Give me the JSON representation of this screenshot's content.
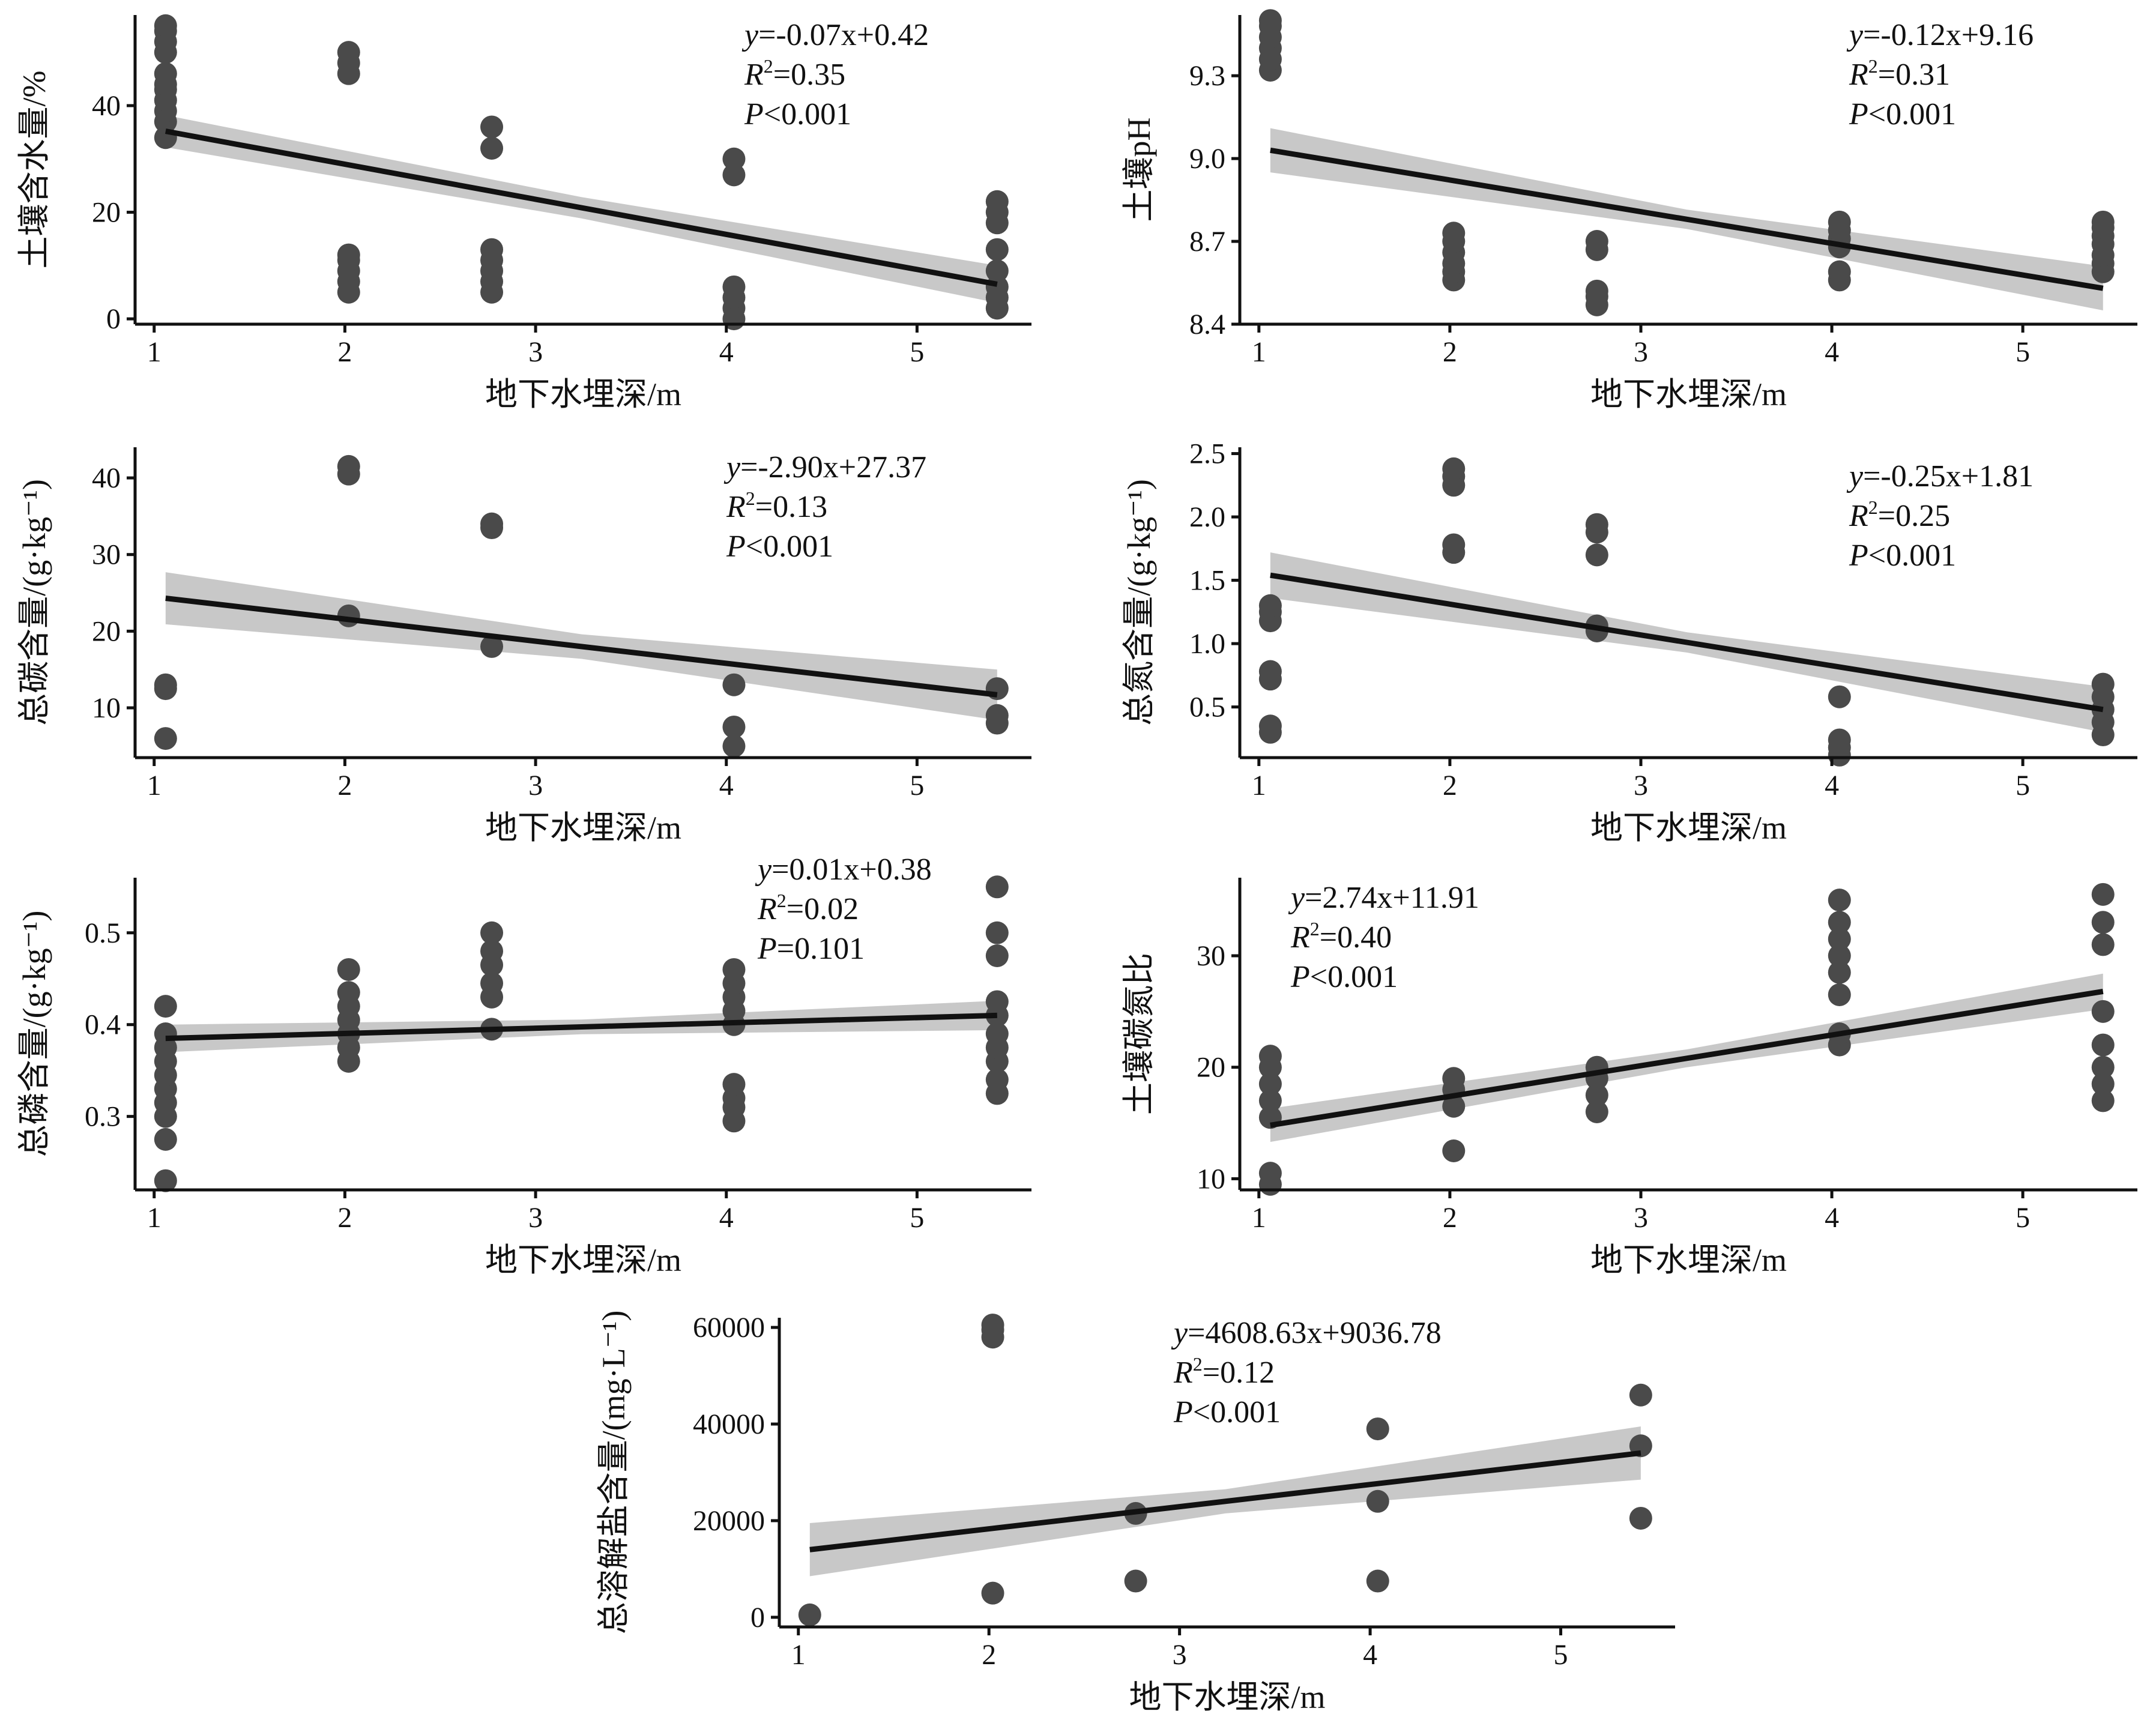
{
  "colors": {
    "point": "#4a4a4a",
    "line": "#111111",
    "band": "#c8c8c8",
    "axis": "#111111"
  },
  "chart_data": [
    {
      "type": "scatter",
      "xlabel": "地下水埋深/m",
      "ylabel": "土壤含水量/%",
      "xlim": [
        0.9,
        5.6
      ],
      "ylim": [
        -1,
        57
      ],
      "xticks": [
        1,
        2,
        3,
        4,
        5
      ],
      "yticks": [
        0,
        20,
        40
      ],
      "equation": {
        "lhs": "y",
        "rhs": "=-0.07x+0.42",
        "r2": "=0.35",
        "p_rel": "<0.001"
      },
      "fit": {
        "x": [
          1.06,
          5.42
        ],
        "y": [
          35.2,
          6.5
        ],
        "band": [
          3.0,
          2.0,
          3.5
        ]
      },
      "points": [
        [
          1.06,
          34
        ],
        [
          1.06,
          37
        ],
        [
          1.06,
          39
        ],
        [
          1.06,
          41
        ],
        [
          1.06,
          43
        ],
        [
          1.06,
          44
        ],
        [
          1.06,
          46
        ],
        [
          1.06,
          50
        ],
        [
          1.06,
          52
        ],
        [
          1.06,
          54
        ],
        [
          1.06,
          55
        ],
        [
          2.02,
          5
        ],
        [
          2.02,
          7
        ],
        [
          2.02,
          9
        ],
        [
          2.02,
          11
        ],
        [
          2.02,
          12
        ],
        [
          2.02,
          46
        ],
        [
          2.02,
          48
        ],
        [
          2.02,
          50
        ],
        [
          2.77,
          5
        ],
        [
          2.77,
          7
        ],
        [
          2.77,
          9
        ],
        [
          2.77,
          11
        ],
        [
          2.77,
          13
        ],
        [
          2.77,
          32
        ],
        [
          2.77,
          36
        ],
        [
          4.04,
          0
        ],
        [
          4.04,
          2
        ],
        [
          4.04,
          4
        ],
        [
          4.04,
          6
        ],
        [
          4.04,
          27
        ],
        [
          4.04,
          30
        ],
        [
          5.42,
          2
        ],
        [
          5.42,
          4
        ],
        [
          5.42,
          6
        ],
        [
          5.42,
          9
        ],
        [
          5.42,
          13
        ],
        [
          5.42,
          18
        ],
        [
          5.42,
          20
        ],
        [
          5.42,
          22
        ]
      ]
    },
    {
      "type": "scatter",
      "xlabel": "地下水埋深/m",
      "ylabel": "土壤pH",
      "xlim": [
        0.9,
        5.6
      ],
      "ylim": [
        8.4,
        9.52
      ],
      "xticks": [
        1,
        2,
        3,
        4,
        5
      ],
      "yticks": [
        8.4,
        8.7,
        9.0,
        9.3
      ],
      "ytick_labels": [
        "8.4",
        "8.7",
        "9.0",
        "9.3"
      ],
      "equation": {
        "lhs": "y",
        "rhs": "=-0.12x+9.16",
        "r2": "=0.31",
        "p_rel": "<0.001"
      },
      "fit": {
        "x": [
          1.06,
          5.42
        ],
        "y": [
          9.03,
          8.53
        ],
        "band": [
          0.08,
          0.035,
          0.08
        ]
      },
      "points": [
        [
          1.06,
          9.32
        ],
        [
          1.06,
          9.36
        ],
        [
          1.06,
          9.4
        ],
        [
          1.06,
          9.44
        ],
        [
          1.06,
          9.48
        ],
        [
          1.06,
          9.5
        ],
        [
          2.02,
          8.56
        ],
        [
          2.02,
          8.59
        ],
        [
          2.02,
          8.62
        ],
        [
          2.02,
          8.66
        ],
        [
          2.02,
          8.7
        ],
        [
          2.02,
          8.73
        ],
        [
          2.77,
          8.47
        ],
        [
          2.77,
          8.5
        ],
        [
          2.77,
          8.52
        ],
        [
          2.77,
          8.67
        ],
        [
          2.77,
          8.7
        ],
        [
          4.04,
          8.56
        ],
        [
          4.04,
          8.59
        ],
        [
          4.04,
          8.68
        ],
        [
          4.04,
          8.71
        ],
        [
          4.04,
          8.74
        ],
        [
          4.04,
          8.77
        ],
        [
          5.42,
          8.59
        ],
        [
          5.42,
          8.62
        ],
        [
          5.42,
          8.65
        ],
        [
          5.42,
          8.69
        ],
        [
          5.42,
          8.72
        ],
        [
          5.42,
          8.75
        ],
        [
          5.42,
          8.77
        ]
      ]
    },
    {
      "type": "scatter",
      "xlabel": "地下水埋深/m",
      "ylabel": "总碳含量/(g·kg⁻¹)",
      "xlim": [
        0.9,
        5.6
      ],
      "ylim": [
        3.5,
        44
      ],
      "xticks": [
        1,
        2,
        3,
        4,
        5
      ],
      "yticks": [
        10,
        20,
        30,
        40
      ],
      "equation": {
        "lhs": "y",
        "rhs": "=-2.90x+27.37",
        "r2": "=0.13",
        "p_rel": "<0.001"
      },
      "fit": {
        "x": [
          1.06,
          5.42
        ],
        "y": [
          24.3,
          11.7
        ],
        "band": [
          3.4,
          1.6,
          3.3
        ]
      },
      "points": [
        [
          1.06,
          6
        ],
        [
          1.06,
          12.5
        ],
        [
          1.06,
          13
        ],
        [
          2.02,
          22
        ],
        [
          2.02,
          40.5
        ],
        [
          2.02,
          41.5
        ],
        [
          2.77,
          18
        ],
        [
          2.77,
          33.5
        ],
        [
          2.77,
          34
        ],
        [
          4.04,
          5
        ],
        [
          4.04,
          7.5
        ],
        [
          4.04,
          13
        ],
        [
          5.42,
          8
        ],
        [
          5.42,
          9
        ],
        [
          5.42,
          12.5
        ]
      ]
    },
    {
      "type": "scatter",
      "xlabel": "地下水埋深/m",
      "ylabel": "总氮含量/(g·kg⁻¹)",
      "xlim": [
        0.9,
        5.6
      ],
      "ylim": [
        0.1,
        2.55
      ],
      "xticks": [
        1,
        2,
        3,
        4,
        5
      ],
      "yticks": [
        0.5,
        1.0,
        1.5,
        2.0,
        2.5
      ],
      "ytick_labels": [
        "0.5",
        "1.0",
        "1.5",
        "2.0",
        "2.5"
      ],
      "equation": {
        "lhs": "y",
        "rhs": "=-0.25x+1.81",
        "r2": "=0.25",
        "p_rel": "<0.001"
      },
      "fit": {
        "x": [
          1.06,
          5.42
        ],
        "y": [
          1.54,
          0.48
        ],
        "band": [
          0.18,
          0.08,
          0.18
        ]
      },
      "points": [
        [
          1.06,
          0.3
        ],
        [
          1.06,
          0.35
        ],
        [
          1.06,
          0.72
        ],
        [
          1.06,
          0.78
        ],
        [
          1.06,
          1.18
        ],
        [
          1.06,
          1.25
        ],
        [
          1.06,
          1.3
        ],
        [
          2.02,
          1.72
        ],
        [
          2.02,
          1.78
        ],
        [
          2.02,
          2.25
        ],
        [
          2.02,
          2.32
        ],
        [
          2.02,
          2.38
        ],
        [
          2.77,
          1.1
        ],
        [
          2.77,
          1.14
        ],
        [
          2.77,
          1.7
        ],
        [
          2.77,
          1.88
        ],
        [
          2.77,
          1.94
        ],
        [
          4.04,
          0.12
        ],
        [
          4.04,
          0.18
        ],
        [
          4.04,
          0.24
        ],
        [
          4.04,
          0.58
        ],
        [
          5.42,
          0.28
        ],
        [
          5.42,
          0.38
        ],
        [
          5.42,
          0.48
        ],
        [
          5.42,
          0.58
        ],
        [
          5.42,
          0.68
        ]
      ]
    },
    {
      "type": "scatter",
      "xlabel": "地下水埋深/m",
      "ylabel": "总磷含量/(g·kg⁻¹)",
      "xlim": [
        0.9,
        5.6
      ],
      "ylim": [
        0.22,
        0.56
      ],
      "xticks": [
        1,
        2,
        3,
        4,
        5
      ],
      "yticks": [
        0.3,
        0.4,
        0.5
      ],
      "ytick_labels": [
        "0.3",
        "0.4",
        "0.5"
      ],
      "equation": {
        "lhs": "y",
        "rhs": "=0.01x+0.38",
        "r2": "=0.02",
        "p_rel": "=0.101"
      },
      "fit": {
        "x": [
          1.06,
          5.42
        ],
        "y": [
          0.385,
          0.41
        ],
        "band": [
          0.015,
          0.008,
          0.016
        ]
      },
      "points": [
        [
          1.06,
          0.23
        ],
        [
          1.06,
          0.275
        ],
        [
          1.06,
          0.3
        ],
        [
          1.06,
          0.315
        ],
        [
          1.06,
          0.33
        ],
        [
          1.06,
          0.345
        ],
        [
          1.06,
          0.36
        ],
        [
          1.06,
          0.375
        ],
        [
          1.06,
          0.39
        ],
        [
          1.06,
          0.42
        ],
        [
          2.02,
          0.36
        ],
        [
          2.02,
          0.375
        ],
        [
          2.02,
          0.39
        ],
        [
          2.02,
          0.405
        ],
        [
          2.02,
          0.42
        ],
        [
          2.02,
          0.435
        ],
        [
          2.02,
          0.46
        ],
        [
          2.77,
          0.395
        ],
        [
          2.77,
          0.43
        ],
        [
          2.77,
          0.445
        ],
        [
          2.77,
          0.465
        ],
        [
          2.77,
          0.48
        ],
        [
          2.77,
          0.5
        ],
        [
          4.04,
          0.295
        ],
        [
          4.04,
          0.31
        ],
        [
          4.04,
          0.32
        ],
        [
          4.04,
          0.335
        ],
        [
          4.04,
          0.4
        ],
        [
          4.04,
          0.415
        ],
        [
          4.04,
          0.43
        ],
        [
          4.04,
          0.445
        ],
        [
          4.04,
          0.46
        ],
        [
          5.42,
          0.325
        ],
        [
          5.42,
          0.34
        ],
        [
          5.42,
          0.36
        ],
        [
          5.42,
          0.375
        ],
        [
          5.42,
          0.39
        ],
        [
          5.42,
          0.41
        ],
        [
          5.42,
          0.425
        ],
        [
          5.42,
          0.475
        ],
        [
          5.42,
          0.5
        ],
        [
          5.42,
          0.55
        ]
      ]
    },
    {
      "type": "scatter",
      "xlabel": "地下水埋深/m",
      "ylabel": "土壤碳氮比",
      "xlim": [
        0.9,
        5.6
      ],
      "ylim": [
        9,
        37
      ],
      "xticks": [
        1,
        2,
        3,
        4,
        5
      ],
      "yticks": [
        10,
        20,
        30
      ],
      "equation": {
        "lhs": "y",
        "rhs": "=2.74x+11.91",
        "r2": "=0.40",
        "p_rel": "<0.001"
      },
      "fit": {
        "x": [
          1.06,
          5.42
        ],
        "y": [
          14.8,
          26.8
        ],
        "band": [
          1.5,
          0.8,
          1.6
        ]
      },
      "points": [
        [
          1.06,
          9.5
        ],
        [
          1.06,
          10.5
        ],
        [
          1.06,
          15.5
        ],
        [
          1.06,
          17
        ],
        [
          1.06,
          18.5
        ],
        [
          1.06,
          20
        ],
        [
          1.06,
          21
        ],
        [
          2.02,
          12.5
        ],
        [
          2.02,
          16.5
        ],
        [
          2.02,
          18
        ],
        [
          2.02,
          19
        ],
        [
          2.77,
          16
        ],
        [
          2.77,
          17.5
        ],
        [
          2.77,
          19
        ],
        [
          2.77,
          20
        ],
        [
          4.04,
          22
        ],
        [
          4.04,
          23
        ],
        [
          4.04,
          26.5
        ],
        [
          4.04,
          28.5
        ],
        [
          4.04,
          30
        ],
        [
          4.04,
          31.5
        ],
        [
          4.04,
          33
        ],
        [
          4.04,
          35
        ],
        [
          5.42,
          17
        ],
        [
          5.42,
          18.5
        ],
        [
          5.42,
          20
        ],
        [
          5.42,
          22
        ],
        [
          5.42,
          25
        ],
        [
          5.42,
          31
        ],
        [
          5.42,
          33
        ],
        [
          5.42,
          35.5
        ]
      ]
    },
    {
      "type": "scatter",
      "xlabel": "地下水埋深/m",
      "ylabel": "总溶解盐含量/(mg·L⁻¹)",
      "xlim": [
        0.9,
        5.6
      ],
      "ylim": [
        -2000,
        62000
      ],
      "xticks": [
        1,
        2,
        3,
        4,
        5
      ],
      "yticks": [
        0,
        20000,
        40000,
        60000
      ],
      "equation": {
        "lhs": "y",
        "rhs": "=4608.63x+9036.78",
        "r2": "=0.12",
        "p_rel": "<0.001"
      },
      "fit": {
        "x": [
          1.06,
          5.42
        ],
        "y": [
          14000,
          34000
        ],
        "band": [
          5500,
          2500,
          5500
        ]
      },
      "points": [
        [
          1.06,
          500
        ],
        [
          2.02,
          5000
        ],
        [
          2.02,
          58000
        ],
        [
          2.02,
          59500
        ],
        [
          2.02,
          60500
        ],
        [
          2.77,
          7500
        ],
        [
          2.77,
          21500
        ],
        [
          4.04,
          7500
        ],
        [
          4.04,
          24000
        ],
        [
          4.04,
          39000
        ],
        [
          5.42,
          20500
        ],
        [
          5.42,
          35500
        ],
        [
          5.42,
          46000
        ]
      ]
    }
  ]
}
